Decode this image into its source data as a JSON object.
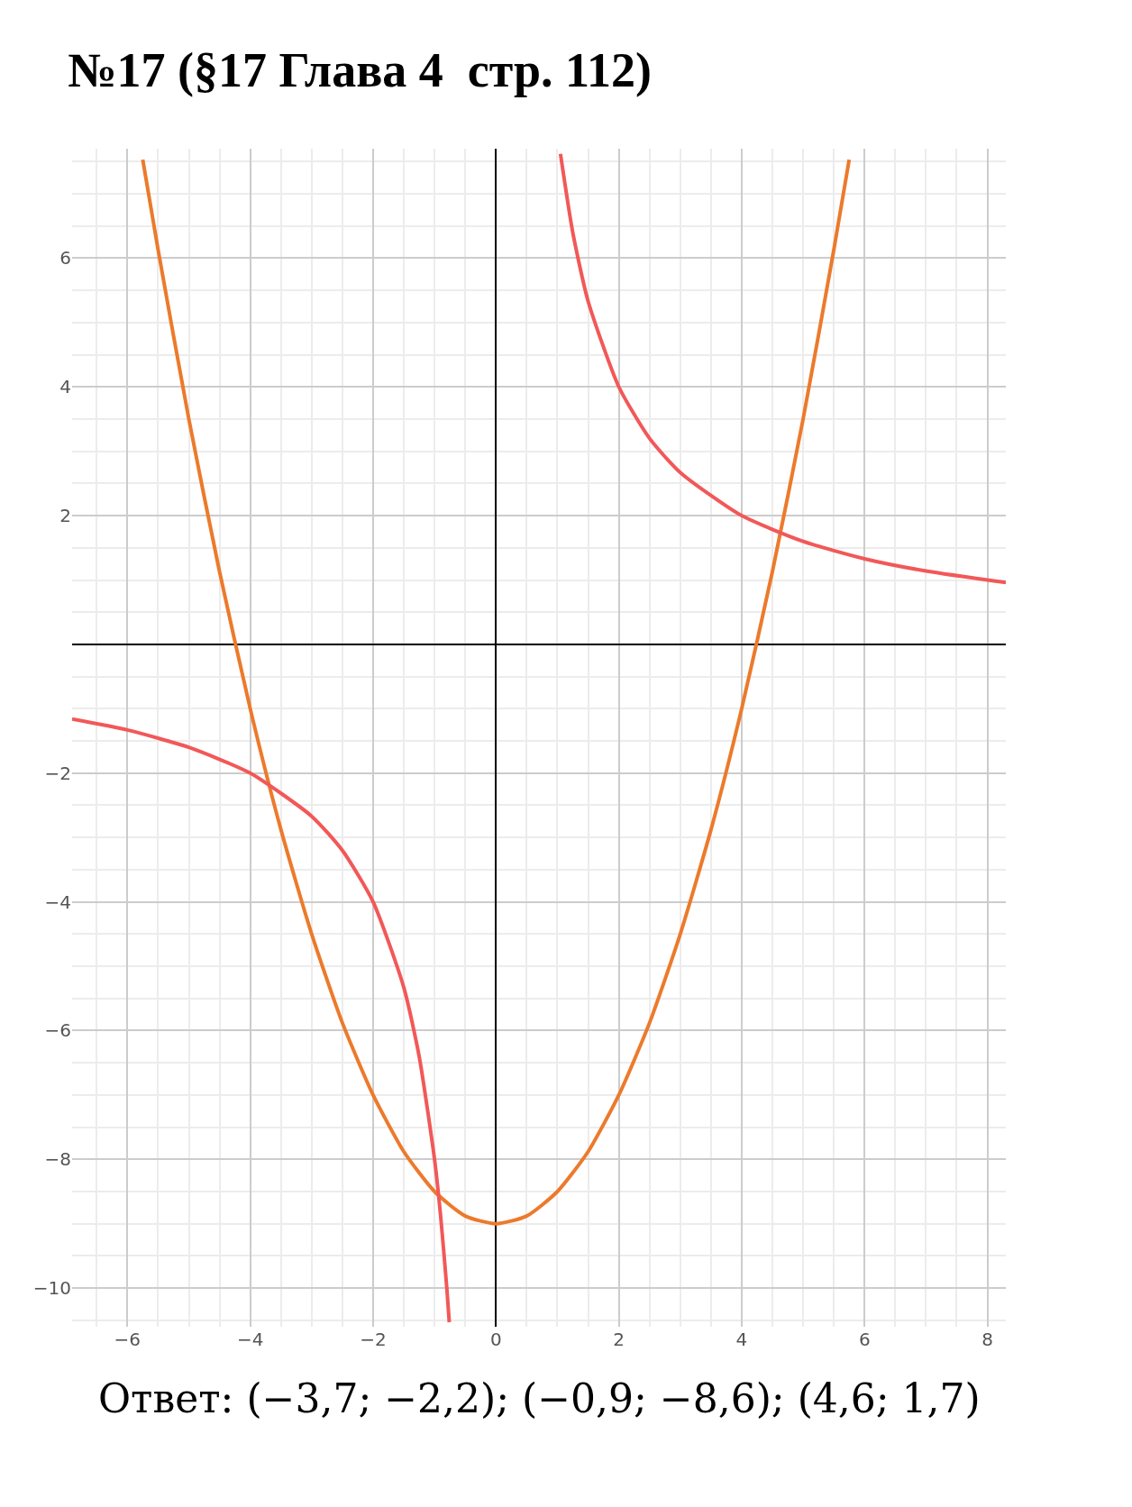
{
  "chart_data": {
    "type": "line",
    "title": "№17 (§17 Глава 4  стр. 112)",
    "annotations": [
      "Ответ: (−3,7; −2,2); (−0,9; −8,6); (4,6; 1,7)"
    ],
    "series": [
      {
        "color": "#ec7a2c",
        "x": [
          -5.75,
          -5.5,
          -5,
          -4.5,
          -4,
          -3.5,
          -3,
          -2.5,
          -2,
          -1.5,
          -1,
          -0.5,
          0,
          0.5,
          1,
          1.5,
          2,
          2.5,
          3,
          3.5,
          4,
          4.5,
          5,
          5.5,
          5.75
        ],
        "values": [
          7.53,
          6.13,
          3.5,
          1.13,
          -1,
          -2.88,
          -4.5,
          -5.88,
          -7,
          -7.88,
          -8.5,
          -8.88,
          -9,
          -8.88,
          -8.5,
          -7.88,
          -7,
          -5.88,
          -4.5,
          -2.88,
          -1,
          1.13,
          3.5,
          6.13,
          7.53
        ]
      },
      {
        "color": "#f25858",
        "x": [
          -6.9,
          -6,
          -5,
          -4,
          -3,
          -2.5,
          -2,
          -1.5,
          -1.25,
          -1,
          -0.9,
          -0.8,
          -0.76
        ],
        "values": [
          -1.16,
          -1.33,
          -1.6,
          -2,
          -2.67,
          -3.2,
          -4,
          -5.33,
          -6.4,
          -8,
          -8.89,
          -10,
          -10.53
        ]
      },
      {
        "color": "#f25858",
        "x": [
          1.05,
          1.25,
          1.5,
          2,
          2.5,
          3,
          4,
          5,
          6,
          7,
          8.3
        ],
        "values": [
          7.62,
          6.4,
          5.33,
          4,
          3.2,
          2.67,
          2,
          1.6,
          1.33,
          1.14,
          0.96
        ]
      }
    ],
    "xlim": [
      -6.9,
      8.3
    ],
    "ylim": [
      -10.6,
      7.7
    ],
    "xticks": [
      {
        "value": -6,
        "label": "−6"
      },
      {
        "value": -4,
        "label": "−4"
      },
      {
        "value": -2,
        "label": "−2"
      },
      0,
      2,
      4,
      6,
      8
    ],
    "yticks": [
      {
        "value": -10,
        "label": "−10"
      },
      {
        "value": -8,
        "label": "−8"
      },
      {
        "value": -6,
        "label": "−6"
      },
      {
        "value": -4,
        "label": "−4"
      },
      {
        "value": -2,
        "label": "−2"
      },
      2,
      4,
      6
    ],
    "grid": true,
    "marker": "none",
    "line_style": "solid"
  }
}
